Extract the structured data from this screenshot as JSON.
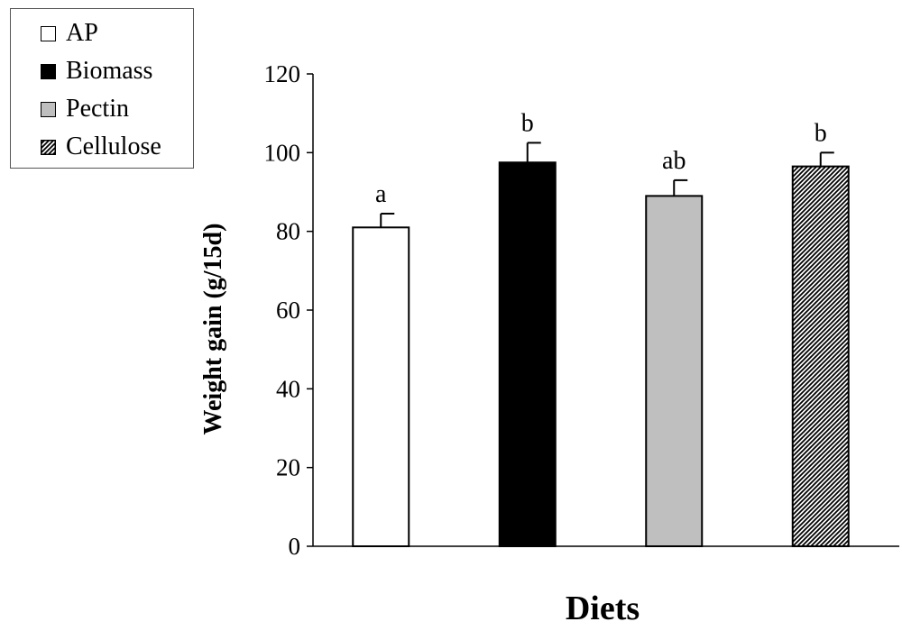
{
  "chart_data": {
    "type": "bar",
    "categories": [
      "AP",
      "Biomass",
      "Pectin",
      "Cellulose"
    ],
    "values": [
      81,
      97.5,
      89,
      96.5
    ],
    "errors": [
      3.5,
      5,
      4,
      3.5
    ],
    "significance_labels": [
      "a",
      "b",
      "ab",
      "b"
    ],
    "ylabel": "Weight gain (g/15d)",
    "xlabel": "Diets",
    "ylim": [
      0,
      120
    ],
    "yticks": [
      0,
      20,
      40,
      60,
      80,
      100,
      120
    ],
    "grid": false,
    "legend_position": "top-left",
    "legend": [
      {
        "label": "AP",
        "fill": "white"
      },
      {
        "label": "Biomass",
        "fill": "black"
      },
      {
        "label": "Pectin",
        "fill": "gray"
      },
      {
        "label": "Cellulose",
        "fill": "hatched"
      }
    ],
    "colors": {
      "white": "#ffffff",
      "black": "#000000",
      "gray": "#bfbfbf",
      "hatch_line": "#000000",
      "axis": "#000000"
    }
  }
}
